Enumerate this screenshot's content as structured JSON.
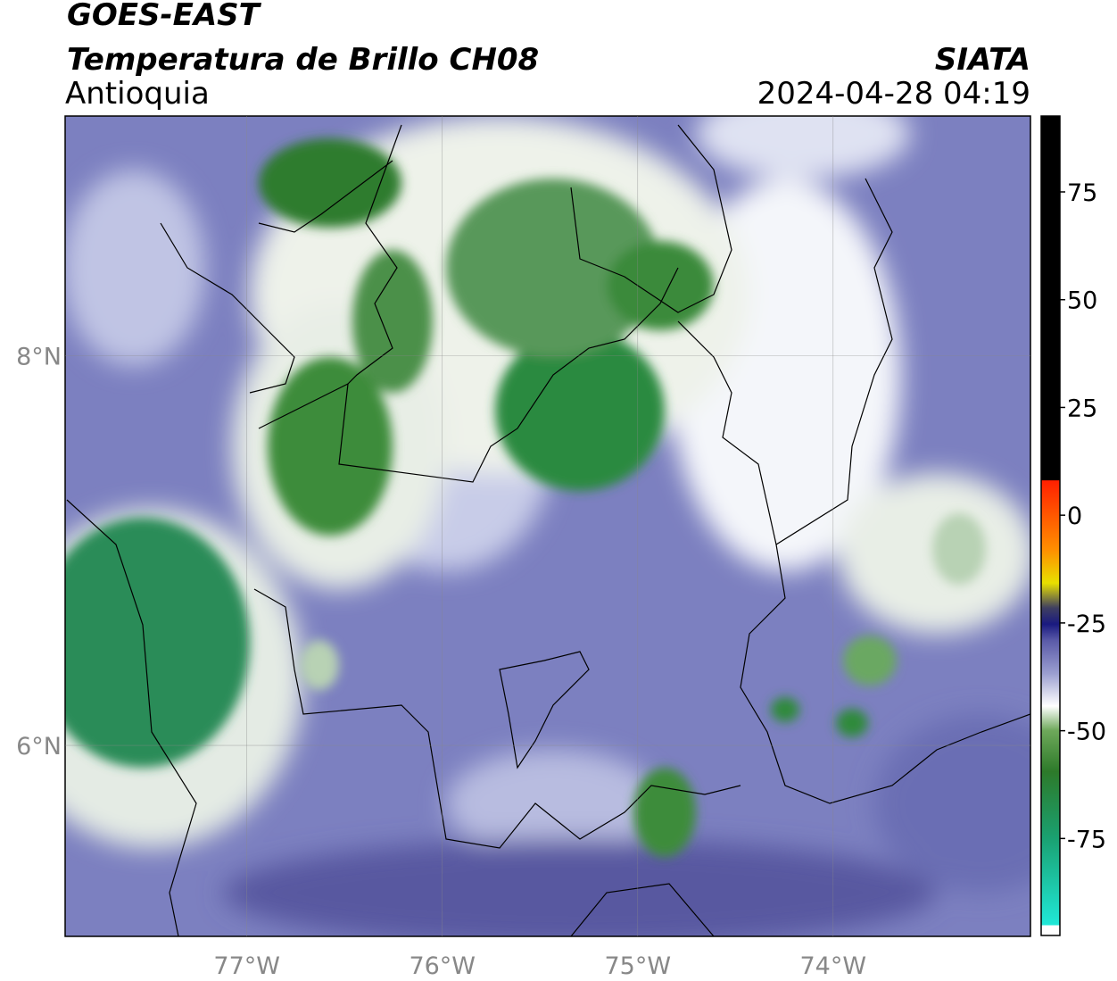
{
  "header": {
    "satellite": "GOES-EAST",
    "product": "Temperatura de Brillo CH08",
    "region": "Antioquia",
    "source": "SIATA",
    "datetime": "2024-04-28 04:19"
  },
  "map": {
    "lon_range": [
      -77.93,
      -72.99
    ],
    "lat_range": [
      5.02,
      9.23
    ],
    "lon_ticks": [
      {
        "value": -77,
        "label": "77°W"
      },
      {
        "value": -76,
        "label": "76°W"
      },
      {
        "value": -75,
        "label": "75°W"
      },
      {
        "value": -74,
        "label": "74°W"
      }
    ],
    "lat_ticks": [
      {
        "value": 8,
        "label": "8°N"
      },
      {
        "value": 6,
        "label": "6°N"
      }
    ]
  },
  "colorbar": {
    "range": [
      -97.5,
      92.6
    ],
    "ticks": [
      75,
      50,
      25,
      0,
      -25,
      -50,
      -75
    ]
  }
}
